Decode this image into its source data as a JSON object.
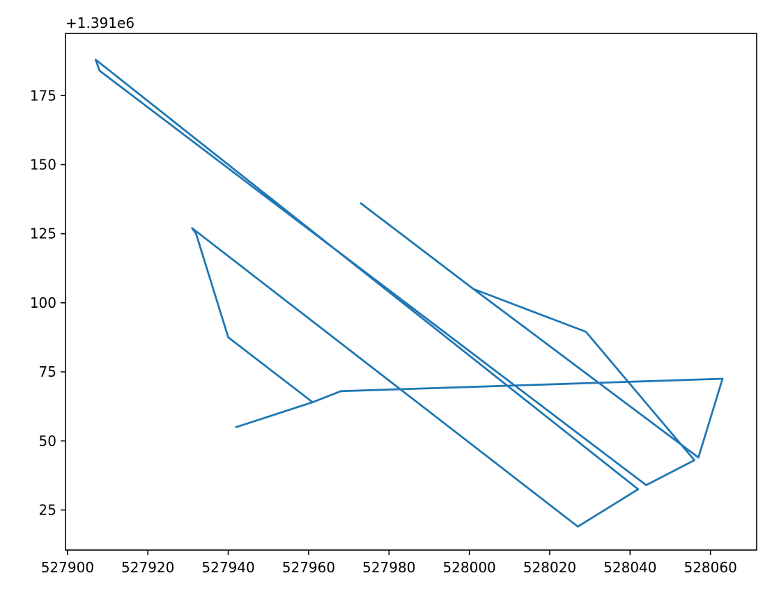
{
  "chart_data": {
    "type": "line",
    "title": "",
    "xlabel": "",
    "ylabel": "",
    "y_offset_text": "+1.391e6",
    "grid": false,
    "legend": "none",
    "xlim": [
      527899.5,
      528071.5
    ],
    "ylim": [
      10.5,
      197.5
    ],
    "xticks": [
      527900,
      527920,
      527940,
      527960,
      527980,
      528000,
      528020,
      528040,
      528060
    ],
    "xtick_labels": [
      "527900",
      "527920",
      "527940",
      "527960",
      "527980",
      "528000",
      "528020",
      "528040",
      "528060"
    ],
    "yticks": [
      25,
      50,
      75,
      100,
      125,
      150,
      175
    ],
    "ytick_labels": [
      "25",
      "50",
      "75",
      "100",
      "125",
      "150",
      "175"
    ],
    "series": [
      {
        "color": "#1f77b4",
        "x": [
          527942,
          527961,
          527968,
          528063,
          528057,
          528001,
          527973,
          528001,
          528029,
          528056,
          528044,
          527908,
          527907,
          528042,
          528027,
          527931,
          527932,
          527940,
          527961,
          527942
        ],
        "y": [
          55,
          64,
          68,
          72.5,
          44,
          105,
          136,
          105,
          89.5,
          43,
          34,
          184,
          188,
          32.5,
          19,
          127,
          125,
          87.5,
          64,
          55
        ]
      }
    ]
  }
}
